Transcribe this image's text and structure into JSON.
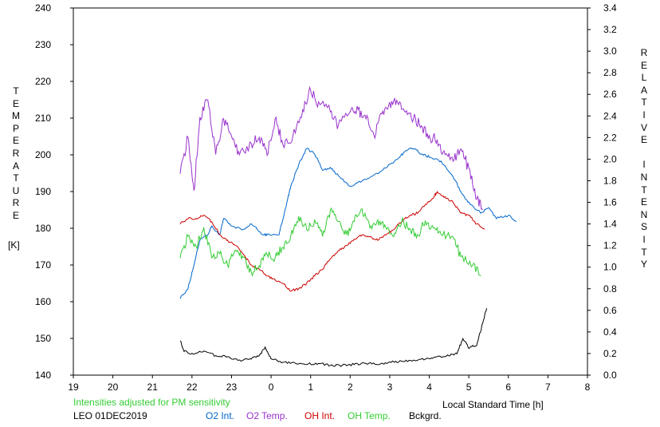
{
  "chart_data": {
    "type": "line",
    "title": "",
    "station": "LEO 01DEC2019",
    "note": "Intensities adjusted for PM sensitivity",
    "xlabel": "Local Standard Time [h]",
    "ylabel_left": "TEMPERATURE",
    "ylabel_left_unit": "[K]",
    "ylabel_right": "RELATIVE INTENSITY",
    "x_ticks": [
      "19",
      "20",
      "21",
      "22",
      "23",
      "0",
      "1",
      "2",
      "3",
      "4",
      "5",
      "6",
      "7",
      "8"
    ],
    "x_range_hours_from_19": [
      0,
      13
    ],
    "y_left_range": [
      140,
      240
    ],
    "y_left_ticks": [
      "140",
      "150",
      "160",
      "170",
      "180",
      "190",
      "200",
      "210",
      "220",
      "230",
      "240"
    ],
    "y_right_range": [
      0.0,
      3.4
    ],
    "y_right_ticks": [
      "0.0",
      "0.2",
      "0.4",
      "0.6",
      "0.8",
      "1.0",
      "1.2",
      "1.4",
      "1.6",
      "1.8",
      "2.0",
      "2.2",
      "2.4",
      "2.6",
      "2.8",
      "3.0",
      "3.2",
      "3.4"
    ],
    "legend": [
      {
        "name": "O2 Int.",
        "color": "#0066cc"
      },
      {
        "name": "O2 Temp.",
        "color": "#9933cc"
      },
      {
        "name": "OH Int.",
        "color": "#cc0000"
      },
      {
        "name": "OH Temp.",
        "color": "#33cc33"
      },
      {
        "name": "Bckgrd.",
        "color": "#000000"
      }
    ],
    "note_color": "#33cc33",
    "series": [
      {
        "name": "O2 Int.",
        "axis": "right",
        "color": "#0066cc",
        "points": [
          [
            21.7,
            0.71
          ],
          [
            21.9,
            0.8
          ],
          [
            22.0,
            0.95
          ],
          [
            22.2,
            1.25
          ],
          [
            22.4,
            1.3
          ],
          [
            22.5,
            1.38
          ],
          [
            22.7,
            1.3
          ],
          [
            22.8,
            1.45
          ],
          [
            23.0,
            1.38
          ],
          [
            23.3,
            1.35
          ],
          [
            23.5,
            1.4
          ],
          [
            23.8,
            1.3
          ],
          [
            23.95,
            1.3
          ],
          [
            24.2,
            1.3
          ],
          [
            24.4,
            1.6
          ],
          [
            24.5,
            1.75
          ],
          [
            24.7,
            1.95
          ],
          [
            24.9,
            2.1
          ],
          [
            25.1,
            2.05
          ],
          [
            25.3,
            1.9
          ],
          [
            25.5,
            1.92
          ],
          [
            25.7,
            1.85
          ],
          [
            26.0,
            1.75
          ],
          [
            26.3,
            1.8
          ],
          [
            26.6,
            1.85
          ],
          [
            26.9,
            1.92
          ],
          [
            27.2,
            2.0
          ],
          [
            27.4,
            2.08
          ],
          [
            27.6,
            2.1
          ],
          [
            27.8,
            2.05
          ],
          [
            28.0,
            2.02
          ],
          [
            28.3,
            1.98
          ],
          [
            28.6,
            1.84
          ],
          [
            28.8,
            1.7
          ],
          [
            29.0,
            1.6
          ],
          [
            29.3,
            1.5
          ],
          [
            29.5,
            1.55
          ],
          [
            29.7,
            1.45
          ],
          [
            30.0,
            1.48
          ],
          [
            30.2,
            1.42
          ]
        ]
      },
      {
        "name": "O2 Temp.",
        "axis": "left",
        "color": "#9933cc",
        "points": [
          [
            21.7,
            195
          ],
          [
            21.9,
            205
          ],
          [
            22.05,
            190
          ],
          [
            22.2,
            210
          ],
          [
            22.4,
            215
          ],
          [
            22.6,
            200
          ],
          [
            22.8,
            210
          ],
          [
            23.0,
            205
          ],
          [
            23.2,
            200
          ],
          [
            23.5,
            203
          ],
          [
            23.7,
            205
          ],
          [
            23.9,
            200
          ],
          [
            24.1,
            210
          ],
          [
            24.3,
            203
          ],
          [
            24.55,
            205
          ],
          [
            24.8,
            212
          ],
          [
            25.0,
            218
          ],
          [
            25.2,
            214
          ],
          [
            25.5,
            212
          ],
          [
            25.7,
            208
          ],
          [
            26.0,
            212
          ],
          [
            26.2,
            212
          ],
          [
            26.4,
            210
          ],
          [
            26.6,
            205
          ],
          [
            26.8,
            211
          ],
          [
            27.0,
            214
          ],
          [
            27.2,
            214
          ],
          [
            27.4,
            212
          ],
          [
            27.6,
            210
          ],
          [
            27.8,
            208
          ],
          [
            28.0,
            205
          ],
          [
            28.2,
            204
          ],
          [
            28.4,
            200
          ],
          [
            28.6,
            198
          ],
          [
            28.8,
            202
          ],
          [
            29.0,
            196
          ],
          [
            29.2,
            188
          ],
          [
            29.35,
            185
          ]
        ]
      },
      {
        "name": "OH Int.",
        "axis": "right",
        "color": "#cc0000",
        "points": [
          [
            21.7,
            1.4
          ],
          [
            21.9,
            1.45
          ],
          [
            22.1,
            1.45
          ],
          [
            22.3,
            1.48
          ],
          [
            22.5,
            1.42
          ],
          [
            22.7,
            1.3
          ],
          [
            22.9,
            1.25
          ],
          [
            23.1,
            1.2
          ],
          [
            23.3,
            1.12
          ],
          [
            23.5,
            1.02
          ],
          [
            23.7,
            0.98
          ],
          [
            23.9,
            0.92
          ],
          [
            24.1,
            0.88
          ],
          [
            24.3,
            0.85
          ],
          [
            24.5,
            0.78
          ],
          [
            24.7,
            0.8
          ],
          [
            24.9,
            0.85
          ],
          [
            25.1,
            0.92
          ],
          [
            25.3,
            0.98
          ],
          [
            25.5,
            1.08
          ],
          [
            25.7,
            1.15
          ],
          [
            25.9,
            1.2
          ],
          [
            26.1,
            1.26
          ],
          [
            26.3,
            1.3
          ],
          [
            26.5,
            1.28
          ],
          [
            26.7,
            1.25
          ],
          [
            26.9,
            1.3
          ],
          [
            27.1,
            1.35
          ],
          [
            27.3,
            1.42
          ],
          [
            27.5,
            1.48
          ],
          [
            27.7,
            1.5
          ],
          [
            27.9,
            1.58
          ],
          [
            28.1,
            1.64
          ],
          [
            28.2,
            1.7
          ],
          [
            28.4,
            1.65
          ],
          [
            28.6,
            1.6
          ],
          [
            28.8,
            1.5
          ],
          [
            29.0,
            1.48
          ],
          [
            29.2,
            1.4
          ],
          [
            29.4,
            1.35
          ]
        ]
      },
      {
        "name": "OH Temp.",
        "axis": "left",
        "color": "#33cc33",
        "points": [
          [
            21.7,
            172
          ],
          [
            21.9,
            178
          ],
          [
            22.1,
            175
          ],
          [
            22.3,
            180
          ],
          [
            22.5,
            172
          ],
          [
            22.7,
            173
          ],
          [
            22.9,
            170
          ],
          [
            23.1,
            174
          ],
          [
            23.3,
            172
          ],
          [
            23.5,
            168
          ],
          [
            23.7,
            170
          ],
          [
            23.9,
            173
          ],
          [
            24.1,
            172
          ],
          [
            24.3,
            175
          ],
          [
            24.5,
            178
          ],
          [
            24.7,
            183
          ],
          [
            24.9,
            180
          ],
          [
            25.1,
            182
          ],
          [
            25.3,
            178
          ],
          [
            25.5,
            185
          ],
          [
            25.7,
            182
          ],
          [
            25.9,
            178
          ],
          [
            26.1,
            182
          ],
          [
            26.3,
            185
          ],
          [
            26.5,
            180
          ],
          [
            26.7,
            182
          ],
          [
            26.9,
            180
          ],
          [
            27.1,
            178
          ],
          [
            27.3,
            182
          ],
          [
            27.5,
            180
          ],
          [
            27.7,
            178
          ],
          [
            27.9,
            182
          ],
          [
            28.1,
            180
          ],
          [
            28.3,
            178
          ],
          [
            28.6,
            178
          ],
          [
            28.8,
            172
          ],
          [
            29.1,
            170
          ],
          [
            29.3,
            167
          ]
        ]
      },
      {
        "name": "Bckgrd.",
        "axis": "right",
        "color": "#000000",
        "points": [
          [
            21.7,
            0.32
          ],
          [
            21.8,
            0.22
          ],
          [
            22.0,
            0.2
          ],
          [
            22.3,
            0.22
          ],
          [
            22.6,
            0.18
          ],
          [
            22.9,
            0.17
          ],
          [
            23.2,
            0.14
          ],
          [
            23.5,
            0.15
          ],
          [
            23.7,
            0.18
          ],
          [
            23.85,
            0.26
          ],
          [
            24.0,
            0.15
          ],
          [
            24.3,
            0.12
          ],
          [
            24.6,
            0.11
          ],
          [
            24.9,
            0.1
          ],
          [
            25.2,
            0.11
          ],
          [
            25.5,
            0.09
          ],
          [
            25.8,
            0.09
          ],
          [
            26.1,
            0.1
          ],
          [
            26.4,
            0.11
          ],
          [
            26.7,
            0.1
          ],
          [
            27.0,
            0.12
          ],
          [
            27.3,
            0.13
          ],
          [
            27.6,
            0.14
          ],
          [
            27.9,
            0.15
          ],
          [
            28.2,
            0.17
          ],
          [
            28.5,
            0.18
          ],
          [
            28.7,
            0.2
          ],
          [
            28.85,
            0.34
          ],
          [
            29.0,
            0.25
          ],
          [
            29.2,
            0.28
          ],
          [
            29.35,
            0.48
          ],
          [
            29.45,
            0.62
          ]
        ]
      }
    ]
  }
}
